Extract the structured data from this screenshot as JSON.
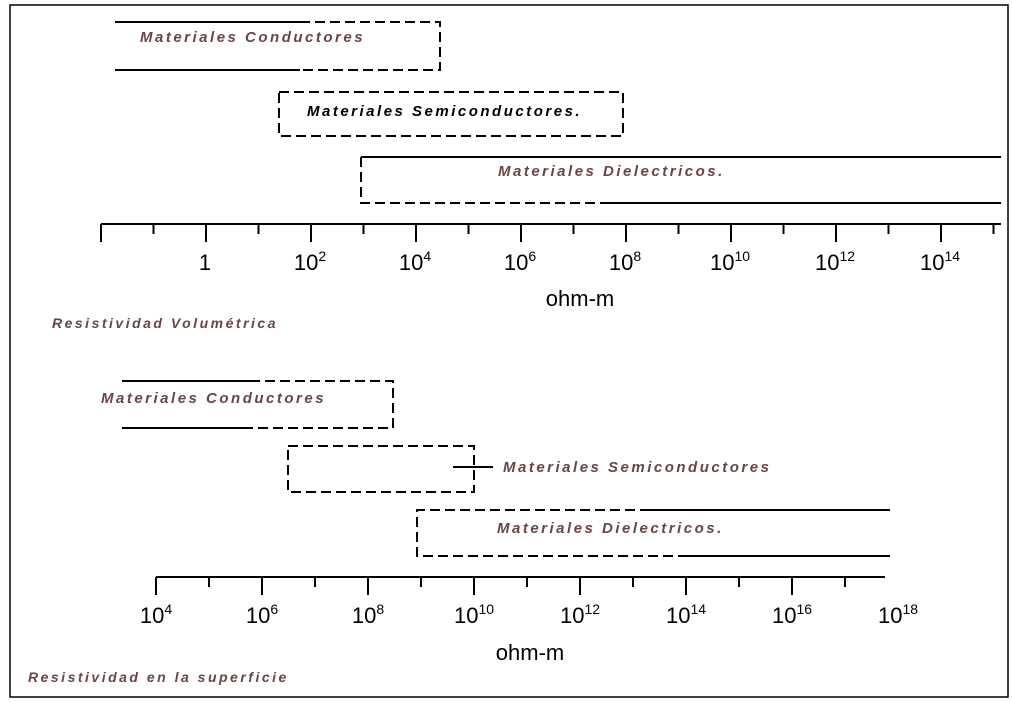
{
  "panels": [
    {
      "bands": [
        {
          "label": "Materiales Conductores"
        },
        {
          "label": "Materiales Semiconductores."
        },
        {
          "label": "Materiales Dielectricos."
        }
      ],
      "tick_labels": [
        {
          "base": "1"
        },
        {
          "base": "10",
          "exp": "2"
        },
        {
          "base": "10",
          "exp": "4"
        },
        {
          "base": "10",
          "exp": "6"
        },
        {
          "base": "10",
          "exp": "8"
        },
        {
          "base": "10",
          "exp": "10"
        },
        {
          "base": "10",
          "exp": "12"
        },
        {
          "base": "10",
          "exp": "14"
        }
      ],
      "unit": "ohm-m",
      "caption": "Resistividad Volumétrica"
    },
    {
      "bands": [
        {
          "label": "Materiales Conductores"
        },
        {
          "label": "Materiales Semiconductores"
        },
        {
          "label": "Materiales Dielectricos."
        }
      ],
      "tick_labels": [
        {
          "base": "10",
          "exp": "4"
        },
        {
          "base": "10",
          "exp": "6"
        },
        {
          "base": "10",
          "exp": "8"
        },
        {
          "base": "10",
          "exp": "10"
        },
        {
          "base": "10",
          "exp": "12"
        },
        {
          "base": "10",
          "exp": "14"
        },
        {
          "base": "10",
          "exp": "16"
        },
        {
          "base": "10",
          "exp": "18"
        }
      ],
      "unit": "ohm-m",
      "caption": "Resistividad en la superficie"
    }
  ]
}
